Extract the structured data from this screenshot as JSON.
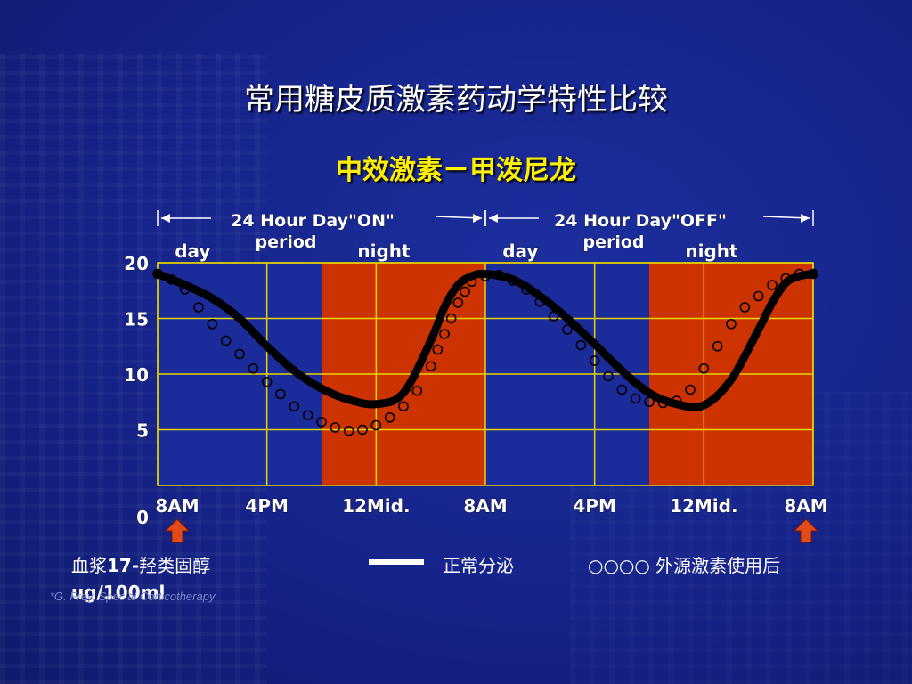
{
  "title": "常用糖皮质激素药动学特性比较",
  "subtitle": "中效激素－甲泼尼龙",
  "source": "*G. Frey, Special Corticotherapy",
  "legend": {
    "ylabel_line1_pre": "血浆",
    "ylabel_line1_bold": "17-",
    "ylabel_line1_post": "羟类固醇",
    "ylabel_line2": "ug/100ml",
    "normal_label": "正常分泌",
    "dots_symbol": "○○○○",
    "exogenous_label": "外源激素使用后"
  },
  "colors": {
    "background": "#16238a",
    "plot_blue": "#1b2b9a",
    "night_band": "#cc3300",
    "grid": "#e8d400",
    "curve": "#000000",
    "title": "#ffffff",
    "subtitle": "#ffef00",
    "arrow": "#e24a1a"
  },
  "chart_data": {
    "type": "line",
    "title": "中效激素－甲泼尼龙",
    "ylabel": "血浆17-羟类固醇 ug/100ml",
    "y_ticks": [
      "0",
      "5",
      "10",
      "15",
      "20"
    ],
    "ylim": [
      0,
      20
    ],
    "xlim": [
      0,
      48
    ],
    "x_tick_labels": [
      "8AM",
      "4PM",
      "12Mid.",
      "8AM",
      "4PM",
      "12Mid.",
      "8AM"
    ],
    "x_tick_hours": [
      0,
      8,
      16,
      24,
      32,
      40,
      48
    ],
    "grid": true,
    "periods": [
      {
        "label": "24 Hour Day\"ON\" period",
        "start": 0,
        "end": 24
      },
      {
        "label": "24 Hour Day\"OFF\" period",
        "start": 24,
        "end": 48
      }
    ],
    "day_night_labels": [
      {
        "text": "day",
        "hour": 4
      },
      {
        "text": "night",
        "hour": 18
      },
      {
        "text": "day",
        "hour": 28
      },
      {
        "text": "night",
        "hour": 42
      }
    ],
    "night_bands": [
      [
        12,
        24
      ],
      [
        36,
        48
      ]
    ],
    "dose_arrows_at": [
      0,
      48
    ],
    "series": [
      {
        "style": "thick-line",
        "x": [
          0,
          2,
          4,
          6,
          8,
          10,
          12,
          14,
          16,
          18,
          20,
          21,
          22,
          23,
          24,
          26,
          28,
          30,
          32,
          34,
          36,
          38,
          40,
          42,
          44,
          45,
          46,
          47,
          48
        ],
        "y": [
          19,
          18,
          16.8,
          15,
          12.5,
          10.3,
          8.7,
          7.7,
          7.3,
          8.3,
          13,
          16,
          18,
          18.8,
          19,
          18.5,
          17,
          15,
          12.7,
          10.3,
          8.3,
          7.3,
          7.2,
          9.5,
          14,
          16.4,
          18.2,
          18.8,
          19
        ]
      },
      {
        "style": "open-circles",
        "x": [
          0,
          1,
          2,
          3,
          4,
          5,
          6,
          7,
          8,
          9,
          10,
          11,
          12,
          13,
          14,
          15,
          16,
          17,
          18,
          19,
          20,
          20.5,
          21,
          21.5,
          22,
          22.5,
          23,
          24,
          25,
          26,
          27,
          28,
          29,
          30,
          31,
          32,
          33,
          34,
          35,
          36,
          37,
          38,
          39,
          40,
          41,
          42,
          43,
          44,
          45,
          46,
          47,
          48
        ],
        "y": [
          19,
          18.5,
          17.6,
          16,
          14.5,
          13,
          11.8,
          10.5,
          9.3,
          8.2,
          7.1,
          6.3,
          5.7,
          5.2,
          4.9,
          5,
          5.4,
          6.1,
          7.1,
          8.5,
          10.7,
          12.2,
          13.6,
          15,
          16.4,
          17.4,
          18.3,
          18.8,
          18.9,
          18.4,
          17.6,
          16.5,
          15.2,
          14,
          12.6,
          11.2,
          9.8,
          8.6,
          7.8,
          7.5,
          7.4,
          7.6,
          8.6,
          10.5,
          12.5,
          14.5,
          16,
          17,
          18,
          18.6,
          19,
          19
        ]
      }
    ]
  }
}
